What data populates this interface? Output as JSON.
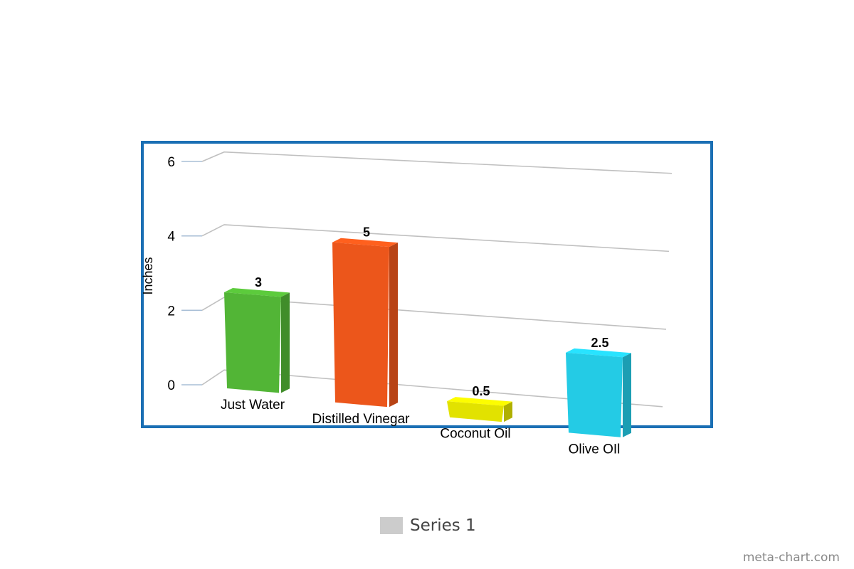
{
  "chart_data": {
    "type": "bar",
    "categories": [
      "Just Water",
      "Distilled Vinegar",
      "Coconut Oil",
      "Olive OIl"
    ],
    "series": [
      {
        "name": "Series 1",
        "values": [
          3,
          5,
          0.5,
          2.5
        ],
        "data_labels": [
          "3",
          "5",
          "0.5",
          "2.5"
        ]
      }
    ],
    "colors": [
      "#52b536",
      "#ec561b",
      "#e2e200",
      "#24cbe5"
    ],
    "ylabel": "Inches",
    "ylim": [
      0,
      6
    ],
    "yticks": [
      0,
      2,
      4,
      6
    ],
    "ytick_labels": [
      "0",
      "2",
      "4",
      "6"
    ],
    "grid": true,
    "legend_position": "bottom-center",
    "frame_color": "#1a6fb4",
    "three_d": true
  },
  "legend": {
    "label": "Series 1",
    "swatch_color": "#cccccc"
  },
  "watermark": "meta-chart.com"
}
